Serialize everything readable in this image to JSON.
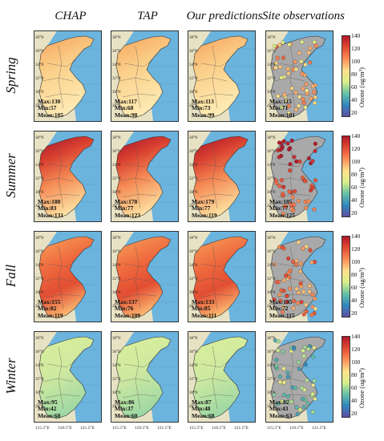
{
  "columns": [
    {
      "key": "chap",
      "label": "CHAP"
    },
    {
      "key": "tap",
      "label": "TAP"
    },
    {
      "key": "pred",
      "label": "Our predictions"
    },
    {
      "key": "site",
      "label": "Site observations"
    }
  ],
  "rows": [
    {
      "key": "spring",
      "label": "Spring",
      "stats": [
        {
          "max": "Max:130",
          "min": "Min:57",
          "mean": "Mean:105"
        },
        {
          "max": "Max:117",
          "min": "Min:68",
          "mean": "Mean:98"
        },
        {
          "max": "Max:113",
          "min": "Min:73",
          "mean": "Mean:99"
        },
        {
          "max": "Max:115",
          "min": "Min:71",
          "mean": "Mean:101"
        }
      ]
    },
    {
      "key": "summer",
      "label": "Summer",
      "stats": [
        {
          "max": "Max:188",
          "min": "Min:83",
          "mean": "Mean:131"
        },
        {
          "max": "Max:178",
          "min": "Min:77",
          "mean": "Mean:123"
        },
        {
          "max": "Max:179",
          "min": "Min:77",
          "mean": "Mean:119"
        },
        {
          "max": "Max:185",
          "min": "Min:77",
          "mean": "Mean:125"
        }
      ]
    },
    {
      "key": "fall",
      "label": "Fall",
      "stats": [
        {
          "max": "Max:155",
          "min": "Min:82",
          "mean": "Mean:119"
        },
        {
          "max": "Max:137",
          "min": "Min:76",
          "mean": "Mean:109"
        },
        {
          "max": "Max:133",
          "min": "Min:85",
          "mean": "Mean:111"
        },
        {
          "max": "Max:135",
          "min": "Min:72",
          "mean": "Mean:115"
        }
      ]
    },
    {
      "key": "winter",
      "label": "Winter",
      "stats": [
        {
          "max": "Max:95",
          "min": "Min:42",
          "mean": "Mean:68"
        },
        {
          "max": "Max:86",
          "min": "Min:37",
          "mean": "Mean:60"
        },
        {
          "max": "Max:87",
          "min": "Min:48",
          "mean": "Mean:68"
        },
        {
          "max": "Max:82",
          "min": "Min:43",
          "mean": "Mean:63"
        }
      ]
    }
  ],
  "latitude_ticks": [
    "38°N",
    "36°N",
    "34°N",
    "32°N",
    "30°N",
    "28°N"
  ],
  "longitude_ticks": [
    "115.5°E",
    "118.5°E",
    "121.5°E"
  ],
  "colorbar": {
    "title": "Ozone (ug/m³)",
    "ticks": [
      "140",
      "120",
      "100",
      "80",
      "60",
      "40",
      "20"
    ],
    "colors": [
      "#b2182b",
      "#e34a33",
      "#fc8d59",
      "#fee08b",
      "#d9ef8b",
      "#66c2a5",
      "#3288bd",
      "#5e4fa2"
    ]
  },
  "colors": {
    "ocean": "#6bb4de",
    "land_outside": "#e8e2c4",
    "site_background": "#a9a9a9"
  }
}
